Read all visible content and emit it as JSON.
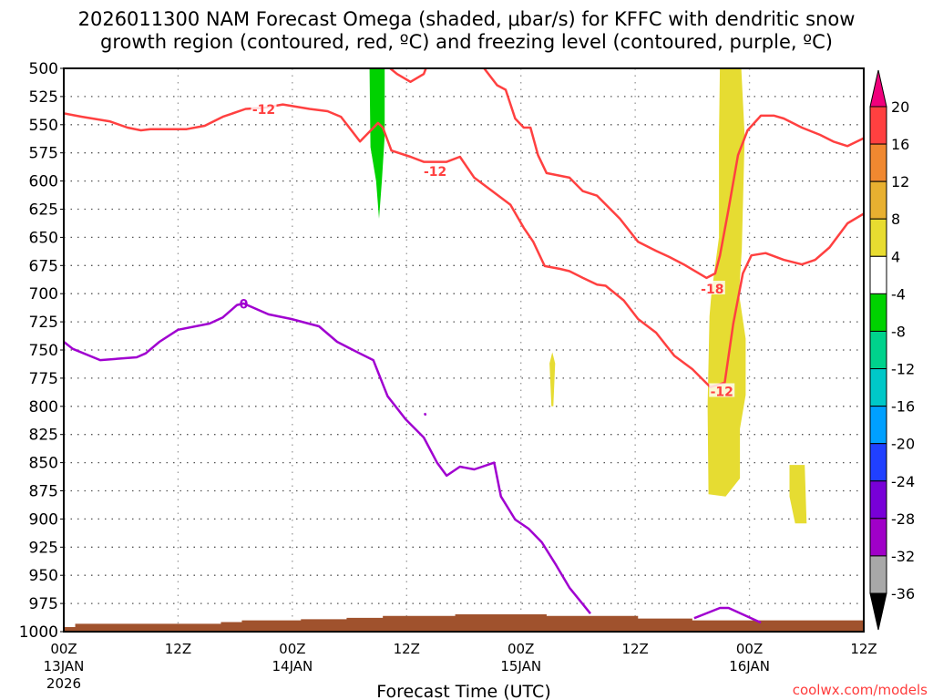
{
  "title_line1": "2026011300 NAM Forecast Omega (shaded, μbar/s) for KFFC with dendritic snow",
  "title_line2": "growth region (contoured, red, ºC) and freezing level (contoured, purple, ºC)",
  "credit": "coolwx.com/models",
  "chart_data": {
    "type": "area",
    "title": "2026011300 NAM Forecast Omega (shaded, μbar/s) for KFFC with dendritic snow growth region (contoured, red, ºC) and freezing level (contoured, purple, ºC)",
    "xlabel": "Forecast Time (UTC)",
    "ylabel": "",
    "xlim_hours": [
      0,
      84
    ],
    "ylim_hPa": [
      500,
      1000
    ],
    "y_inverted": true,
    "grid": true,
    "y_ticks": [
      "500",
      "525",
      "550",
      "575",
      "600",
      "625",
      "650",
      "675",
      "700",
      "725",
      "750",
      "775",
      "800",
      "825",
      "850",
      "875",
      "900",
      "925",
      "950",
      "975",
      "1000"
    ],
    "x_ticks": [
      {
        "hour": 0,
        "lines": [
          "00Z",
          "13JAN",
          "2026"
        ]
      },
      {
        "hour": 12,
        "lines": [
          "12Z"
        ]
      },
      {
        "hour": 24,
        "lines": [
          "00Z",
          "14JAN"
        ]
      },
      {
        "hour": 36,
        "lines": [
          "12Z"
        ]
      },
      {
        "hour": 48,
        "lines": [
          "00Z",
          "15JAN"
        ]
      },
      {
        "hour": 60,
        "lines": [
          "12Z"
        ]
      },
      {
        "hour": 72,
        "lines": [
          "00Z",
          "16JAN"
        ]
      },
      {
        "hour": 84,
        "lines": [
          "12Z"
        ]
      }
    ],
    "colorbar": {
      "labels": [
        "20",
        "16",
        "12",
        "8",
        "4",
        "-4",
        "-8",
        "-12",
        "-16",
        "-20",
        "-24",
        "-28",
        "-32",
        "-36"
      ],
      "colors": [
        "#ff4040",
        "#f08830",
        "#e8b030",
        "#e8dc30",
        "#ffffff",
        "#00d200",
        "#00d28c",
        "#00c8c8",
        "#00a0ff",
        "#2040ff",
        "#7800d8",
        "#a000c8",
        "#a8a8a8"
      ],
      "top_arrow_color": "#f0007c",
      "bottom_arrow_color": "#000000"
    },
    "omega_shading": [
      {
        "value_range": [
          -8,
          -4
        ],
        "color": "#00d200",
        "points": [
          [
            32.1,
            494
          ],
          [
            33.7,
            494
          ],
          [
            33.7,
            560
          ],
          [
            33.4,
            600
          ],
          [
            33.1,
            633.5
          ],
          [
            32.8,
            600
          ],
          [
            32.2,
            570
          ]
        ]
      },
      {
        "value_range": [
          4,
          8
        ],
        "color": "#e6dc32",
        "points": [
          [
            68.9,
            494
          ],
          [
            71.1,
            494
          ],
          [
            71.5,
            560
          ],
          [
            71.2,
            660
          ],
          [
            70.9,
            700
          ],
          [
            71.6,
            740
          ],
          [
            71.6,
            790
          ],
          [
            71.0,
            820
          ],
          [
            71.0,
            864
          ],
          [
            69.5,
            880
          ],
          [
            67.7,
            878
          ],
          [
            67.6,
            800
          ],
          [
            67.8,
            720
          ],
          [
            68.0,
            700
          ],
          [
            68.8,
            650
          ],
          [
            68.8,
            560
          ]
        ]
      },
      {
        "value_range": [
          4,
          8
        ],
        "color": "#e6dc32",
        "points": [
          [
            51.0,
            762
          ],
          [
            51.3,
            752
          ],
          [
            51.6,
            762
          ],
          [
            51.4,
            800
          ],
          [
            51.2,
            800
          ]
        ]
      },
      {
        "value_range": [
          4,
          8
        ],
        "color": "#e6dc32",
        "points": [
          [
            76.2,
            852
          ],
          [
            77.8,
            852
          ],
          [
            78.0,
            904
          ],
          [
            76.8,
            904
          ],
          [
            76.2,
            880
          ]
        ]
      }
    ],
    "red_contours": [
      {
        "points": [
          [
            0,
            540
          ],
          [
            1.9,
            543
          ],
          [
            4.8,
            547
          ],
          [
            6.7,
            552.6
          ],
          [
            8.1,
            555
          ],
          [
            9.1,
            554
          ],
          [
            12.9,
            554
          ],
          [
            14.8,
            551
          ],
          [
            16.7,
            543
          ],
          [
            19.1,
            536
          ],
          [
            21.0,
            535
          ],
          [
            23.0,
            532
          ],
          [
            25.8,
            536
          ],
          [
            27.7,
            538
          ],
          [
            29.1,
            543
          ],
          [
            31.1,
            565
          ],
          [
            33.0,
            548.5
          ],
          [
            33.5,
            552.6
          ],
          [
            34.4,
            573
          ],
          [
            36.4,
            578.5
          ],
          [
            37.8,
            583
          ],
          [
            40.2,
            583
          ],
          [
            41.6,
            578.5
          ],
          [
            43.1,
            597
          ],
          [
            45.0,
            609
          ],
          [
            46.9,
            621
          ],
          [
            48.3,
            641.5
          ],
          [
            49.3,
            654
          ],
          [
            50.5,
            675.5
          ],
          [
            52.1,
            678
          ],
          [
            53.1,
            680
          ],
          [
            54.5,
            686
          ],
          [
            56.0,
            692
          ],
          [
            56.9,
            693
          ],
          [
            58.8,
            706
          ],
          [
            60.3,
            722.5
          ],
          [
            62.2,
            734.6
          ],
          [
            64.1,
            755
          ],
          [
            66.0,
            767
          ],
          [
            67.9,
            783
          ],
          [
            69.4,
            779
          ],
          [
            70.3,
            726.5
          ],
          [
            71.3,
            682
          ],
          [
            72.2,
            666
          ],
          [
            73.7,
            664
          ],
          [
            75.6,
            670
          ],
          [
            77.5,
            674
          ],
          [
            78.9,
            670
          ],
          [
            80.4,
            659
          ],
          [
            82.3,
            637.5
          ],
          [
            84,
            629
          ]
        ]
      },
      {
        "points": [
          [
            33.4,
            494
          ],
          [
            35.0,
            505
          ],
          [
            36.4,
            512
          ],
          [
            37.8,
            505
          ],
          [
            38.3,
            494
          ]
        ]
      },
      {
        "points": [
          [
            43.6,
            494
          ],
          [
            45.5,
            515
          ],
          [
            46.4,
            519
          ],
          [
            47.4,
            544.5
          ],
          [
            48.3,
            552.6
          ],
          [
            49.0,
            552.6
          ],
          [
            49.8,
            577
          ],
          [
            50.7,
            593
          ],
          [
            53.1,
            597
          ],
          [
            54.5,
            609
          ],
          [
            56.0,
            613
          ],
          [
            58.4,
            633.5
          ],
          [
            60.3,
            654
          ],
          [
            62.2,
            662
          ],
          [
            63.6,
            667.5
          ],
          [
            65.1,
            674
          ],
          [
            67.5,
            686
          ],
          [
            68.4,
            682
          ],
          [
            68.9,
            666
          ],
          [
            69.8,
            625
          ],
          [
            70.8,
            577
          ],
          [
            71.8,
            555
          ],
          [
            73.2,
            542
          ],
          [
            74.6,
            542
          ],
          [
            75.6,
            544.5
          ],
          [
            77.5,
            552.6
          ],
          [
            79.4,
            559
          ],
          [
            80.8,
            565
          ],
          [
            82.3,
            569
          ],
          [
            84,
            562
          ]
        ]
      }
    ],
    "red_labels": [
      {
        "text": "-12",
        "hour": 21.0,
        "hPa": 535.5
      },
      {
        "text": "-12",
        "hour": 39.0,
        "hPa": 590.6
      },
      {
        "text": "-18",
        "hour": 68.1,
        "hPa": 695
      },
      {
        "text": "-12",
        "hour": 69.1,
        "hPa": 786
      }
    ],
    "purple_contours": [
      {
        "points": [
          [
            0,
            742.7
          ],
          [
            0.96,
            749
          ],
          [
            3.83,
            759
          ],
          [
            7.65,
            756.5
          ],
          [
            8.6,
            753
          ],
          [
            10.05,
            742.7
          ],
          [
            12,
            732
          ],
          [
            15.3,
            726.5
          ],
          [
            16.7,
            721
          ],
          [
            18.2,
            710
          ],
          [
            18.9,
            708.7
          ],
          [
            21.5,
            718.4
          ],
          [
            23.9,
            722.5
          ],
          [
            26.8,
            729
          ],
          [
            28.7,
            742.7
          ],
          [
            30.6,
            751
          ],
          [
            32.5,
            759
          ],
          [
            34,
            791
          ],
          [
            35.9,
            811.5
          ],
          [
            37.8,
            827.7
          ],
          [
            39.2,
            850
          ],
          [
            40.2,
            861.6
          ],
          [
            41.6,
            853.6
          ],
          [
            43.1,
            856
          ],
          [
            45.2,
            850
          ],
          [
            45.9,
            880
          ],
          [
            47.4,
            900.5
          ],
          [
            48.8,
            908.6
          ],
          [
            50.2,
            920.7
          ],
          [
            51.7,
            941
          ],
          [
            53.1,
            961
          ],
          [
            55.3,
            984
          ]
        ]
      },
      {
        "points": [
          [
            66.2,
            988
          ],
          [
            68.9,
            979
          ],
          [
            69.8,
            979
          ],
          [
            73.2,
            992
          ]
        ]
      },
      {
        "points": [
          [
            37.9,
            806
          ],
          [
            38.0,
            808
          ]
        ]
      }
    ],
    "purple_labels": [
      {
        "text": "0",
        "hour": 18.9,
        "hPa": 709
      }
    ],
    "terrain_steps": [
      [
        0,
        996
      ],
      [
        1.2,
        993
      ],
      [
        16.5,
        991.5
      ],
      [
        18.7,
        990
      ],
      [
        24.9,
        989
      ],
      [
        29.7,
        987.8
      ],
      [
        33.5,
        986
      ],
      [
        41.1,
        984.6
      ],
      [
        50.7,
        986
      ],
      [
        60.3,
        988.4
      ],
      [
        66,
        990
      ],
      [
        84,
        990
      ]
    ],
    "terrain_color": "#a0522d",
    "red_color": "#ff4040",
    "purple_color": "#a000d0"
  }
}
